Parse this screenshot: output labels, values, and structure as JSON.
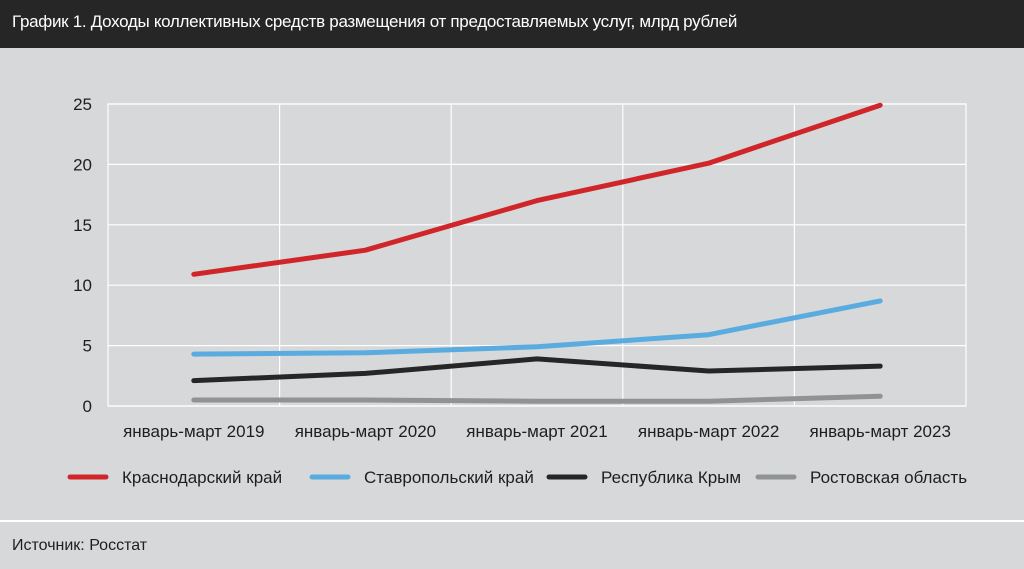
{
  "header": {
    "title": "График 1.  Доходы коллективных средств размещения от предоставляемых услуг, млрд рублей"
  },
  "footer": {
    "source": "Источник: Росстат"
  },
  "colors": {
    "background": "#d6d8d9",
    "title_bar": "#262626",
    "grid": "#ffffff"
  },
  "chart_data": {
    "type": "line",
    "categories": [
      "январь-март 2019",
      "январь-март 2020",
      "январь-март 2021",
      "январь-март 2022",
      "январь-март 2023"
    ],
    "ylim": [
      0,
      25
    ],
    "yticks": [
      0,
      5,
      10,
      15,
      20,
      25
    ],
    "grid": true,
    "legend_position": "bottom",
    "series": [
      {
        "name": "Краснодарский край",
        "color": "#d0262a",
        "values": [
          10.9,
          12.9,
          17.0,
          20.1,
          24.9
        ]
      },
      {
        "name": "Ставропольский край",
        "color": "#5aace0",
        "values": [
          4.3,
          4.4,
          4.9,
          5.9,
          8.7
        ]
      },
      {
        "name": "Республика Крым",
        "color": "#262626",
        "values": [
          2.1,
          2.7,
          3.9,
          2.9,
          3.3
        ]
      },
      {
        "name": "Ростовская область",
        "color": "#909394",
        "values": [
          0.5,
          0.5,
          0.4,
          0.4,
          0.8
        ]
      }
    ]
  }
}
